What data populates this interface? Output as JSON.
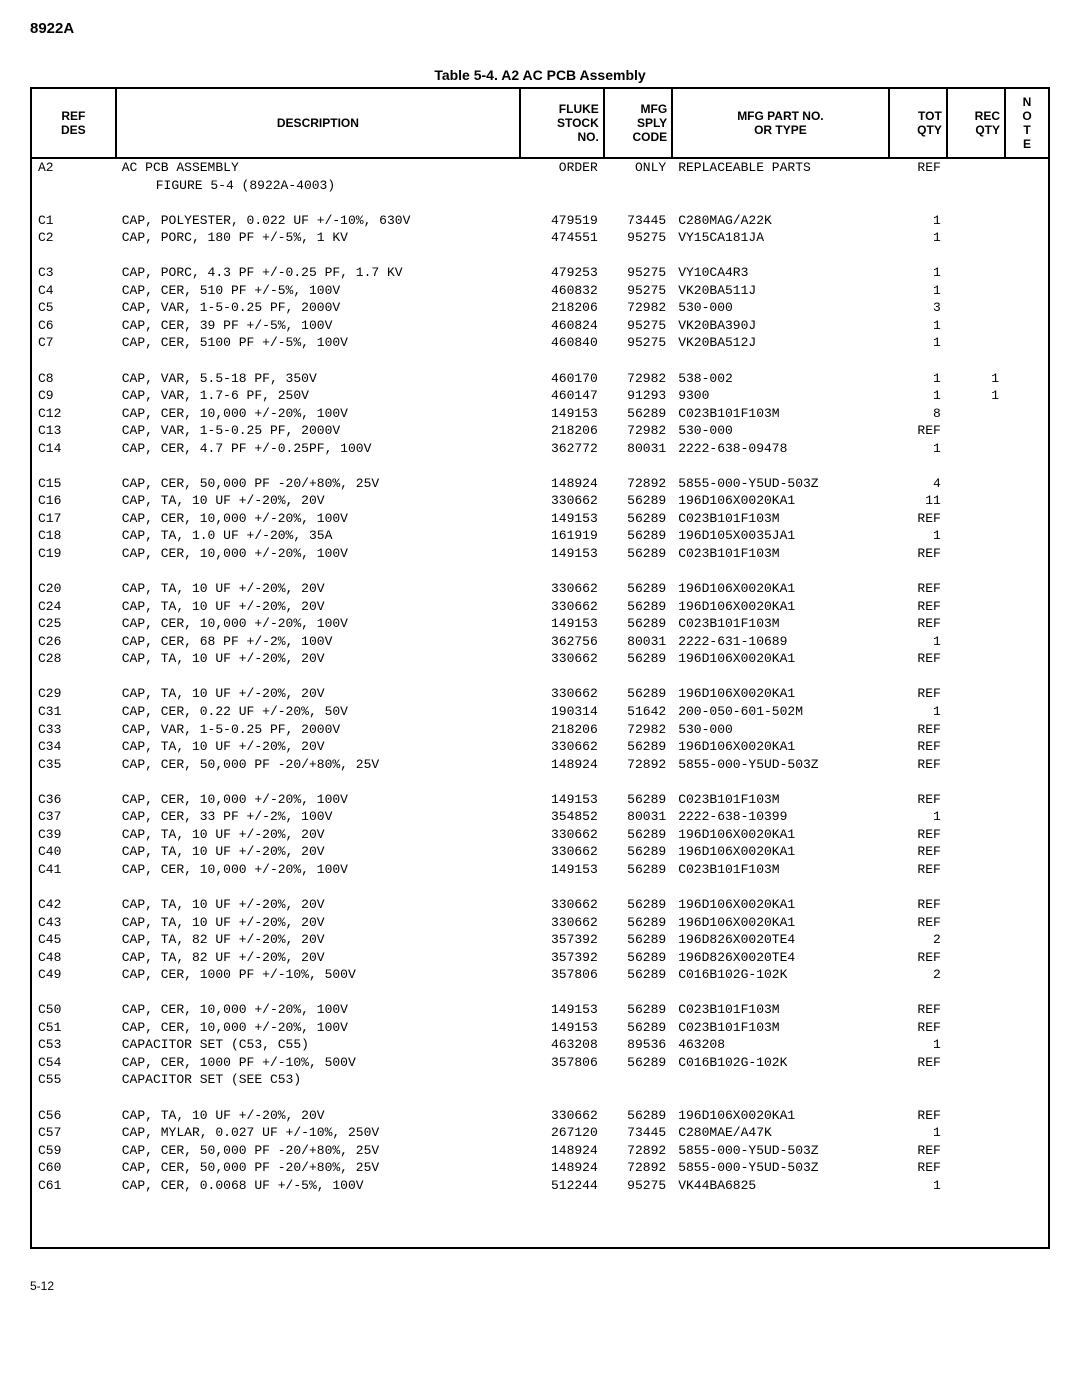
{
  "model": "8922A",
  "tableTitle": "Table 5-4. A2 AC PCB Assembly",
  "pageNo": "5-12",
  "headers": {
    "ref": "REF\nDES",
    "desc": "DESCRIPTION",
    "fluke": "FLUKE\nSTOCK\nNO.",
    "mfg": "MFG\nSPLY\nCODE",
    "part": "MFG PART NO.\nOR TYPE",
    "tot": "TOT\nQTY",
    "rec": "REC\nQTY",
    "note": "N\nO\nT\nE"
  },
  "groups": [
    [
      {
        "ref": "A2",
        "desc": "AC PCB ASSEMBLY",
        "fluke": "ORDER",
        "mfg": "ONLY",
        "part": "REPLACEABLE PARTS",
        "tot": "REF",
        "rec": "",
        "note": ""
      },
      {
        "ref": "",
        "desc": "  FIGURE 5-4 (8922A-4003)",
        "fluke": "",
        "mfg": "",
        "part": "",
        "tot": "",
        "rec": "",
        "note": "",
        "indent": true
      }
    ],
    [
      {
        "ref": "C1",
        "desc": "CAP, POLYESTER, 0.022 UF +/-10%, 630V",
        "fluke": "479519",
        "mfg": "73445",
        "part": "C280MAG/A22K",
        "tot": "1",
        "rec": "",
        "note": ""
      },
      {
        "ref": "C2",
        "desc": "CAP, PORC, 180 PF +/-5%, 1 KV",
        "fluke": "474551",
        "mfg": "95275",
        "part": "VY15CA181JA",
        "tot": "1",
        "rec": "",
        "note": ""
      }
    ],
    [
      {
        "ref": "C3",
        "desc": "CAP, PORC, 4.3 PF +/-0.25 PF, 1.7 KV",
        "fluke": "479253",
        "mfg": "95275",
        "part": "VY10CA4R3",
        "tot": "1",
        "rec": "",
        "note": ""
      },
      {
        "ref": "C4",
        "desc": "CAP, CER, 510 PF +/-5%, 100V",
        "fluke": "460832",
        "mfg": "95275",
        "part": "VK20BA511J",
        "tot": "1",
        "rec": "",
        "note": ""
      },
      {
        "ref": "C5",
        "desc": "CAP, VAR, 1-5-0.25 PF, 2000V",
        "fluke": "218206",
        "mfg": "72982",
        "part": "530-000",
        "tot": "3",
        "rec": "",
        "note": ""
      },
      {
        "ref": "C6",
        "desc": "CAP, CER, 39 PF +/-5%, 100V",
        "fluke": "460824",
        "mfg": "95275",
        "part": "VK20BA390J",
        "tot": "1",
        "rec": "",
        "note": ""
      },
      {
        "ref": "C7",
        "desc": "CAP, CER, 5100 PF +/-5%, 100V",
        "fluke": "460840",
        "mfg": "95275",
        "part": "VK20BA512J",
        "tot": "1",
        "rec": "",
        "note": ""
      }
    ],
    [
      {
        "ref": "C8",
        "desc": "CAP, VAR, 5.5-18 PF, 350V",
        "fluke": "460170",
        "mfg": "72982",
        "part": "538-002",
        "tot": "1",
        "rec": "1",
        "note": ""
      },
      {
        "ref": "C9",
        "desc": "CAP, VAR, 1.7-6 PF, 250V",
        "fluke": "460147",
        "mfg": "91293",
        "part": "9300",
        "tot": "1",
        "rec": "1",
        "note": ""
      },
      {
        "ref": "C12",
        "desc": "CAP, CER, 10,000 +/-20%, 100V",
        "fluke": "149153",
        "mfg": "56289",
        "part": "C023B101F103M",
        "tot": "8",
        "rec": "",
        "note": ""
      },
      {
        "ref": "C13",
        "desc": "CAP, VAR, 1-5-0.25 PF, 2000V",
        "fluke": "218206",
        "mfg": "72982",
        "part": "530-000",
        "tot": "REF",
        "rec": "",
        "note": ""
      },
      {
        "ref": "C14",
        "desc": "CAP, CER, 4.7 PF +/-0.25PF, 100V",
        "fluke": "362772",
        "mfg": "80031",
        "part": "2222-638-09478",
        "tot": "1",
        "rec": "",
        "note": ""
      }
    ],
    [
      {
        "ref": "C15",
        "desc": "CAP, CER, 50,000 PF -20/+80%, 25V",
        "fluke": "148924",
        "mfg": "72892",
        "part": "5855-000-Y5UD-503Z",
        "tot": "4",
        "rec": "",
        "note": ""
      },
      {
        "ref": "C16",
        "desc": "CAP, TA, 10 UF +/-20%, 20V",
        "fluke": "330662",
        "mfg": "56289",
        "part": "196D106X0020KA1",
        "tot": "11",
        "rec": "",
        "note": ""
      },
      {
        "ref": "C17",
        "desc": "CAP, CER, 10,000 +/-20%, 100V",
        "fluke": "149153",
        "mfg": "56289",
        "part": "C023B101F103M",
        "tot": "REF",
        "rec": "",
        "note": ""
      },
      {
        "ref": "C18",
        "desc": "CAP, TA, 1.0 UF +/-20%, 35A",
        "fluke": "161919",
        "mfg": "56289",
        "part": "196D105X0035JA1",
        "tot": "1",
        "rec": "",
        "note": ""
      },
      {
        "ref": "C19",
        "desc": "CAP, CER, 10,000 +/-20%, 100V",
        "fluke": "149153",
        "mfg": "56289",
        "part": "C023B101F103M",
        "tot": "REF",
        "rec": "",
        "note": ""
      }
    ],
    [
      {
        "ref": "C20",
        "desc": "CAP, TA, 10 UF +/-20%, 20V",
        "fluke": "330662",
        "mfg": "56289",
        "part": "196D106X0020KA1",
        "tot": "REF",
        "rec": "",
        "note": ""
      },
      {
        "ref": "C24",
        "desc": "CAP, TA, 10 UF +/-20%, 20V",
        "fluke": "330662",
        "mfg": "56289",
        "part": "196D106X0020KA1",
        "tot": "REF",
        "rec": "",
        "note": ""
      },
      {
        "ref": "C25",
        "desc": "CAP, CER, 10,000 +/-20%, 100V",
        "fluke": "149153",
        "mfg": "56289",
        "part": "C023B101F103M",
        "tot": "REF",
        "rec": "",
        "note": ""
      },
      {
        "ref": "C26",
        "desc": "CAP, CER, 68 PF +/-2%, 100V",
        "fluke": "362756",
        "mfg": "80031",
        "part": "2222-631-10689",
        "tot": "1",
        "rec": "",
        "note": ""
      },
      {
        "ref": "C28",
        "desc": "CAP, TA, 10 UF +/-20%, 20V",
        "fluke": "330662",
        "mfg": "56289",
        "part": "196D106X0020KA1",
        "tot": "REF",
        "rec": "",
        "note": ""
      }
    ],
    [
      {
        "ref": "C29",
        "desc": "CAP, TA, 10 UF +/-20%, 20V",
        "fluke": "330662",
        "mfg": "56289",
        "part": "196D106X0020KA1",
        "tot": "REF",
        "rec": "",
        "note": ""
      },
      {
        "ref": "C31",
        "desc": "CAP, CER, 0.22 UF +/-20%, 50V",
        "fluke": "190314",
        "mfg": "51642",
        "part": "200-050-601-502M",
        "tot": "1",
        "rec": "",
        "note": ""
      },
      {
        "ref": "C33",
        "desc": "CAP, VAR, 1-5-0.25 PF, 2000V",
        "fluke": "218206",
        "mfg": "72982",
        "part": "530-000",
        "tot": "REF",
        "rec": "",
        "note": ""
      },
      {
        "ref": "C34",
        "desc": "CAP, TA, 10 UF +/-20%, 20V",
        "fluke": "330662",
        "mfg": "56289",
        "part": "196D106X0020KA1",
        "tot": "REF",
        "rec": "",
        "note": ""
      },
      {
        "ref": "C35",
        "desc": "CAP, CER, 50,000 PF -20/+80%, 25V",
        "fluke": "148924",
        "mfg": "72892",
        "part": "5855-000-Y5UD-503Z",
        "tot": "REF",
        "rec": "",
        "note": ""
      }
    ],
    [
      {
        "ref": "C36",
        "desc": "CAP, CER, 10,000 +/-20%, 100V",
        "fluke": "149153",
        "mfg": "56289",
        "part": "C023B101F103M",
        "tot": "REF",
        "rec": "",
        "note": ""
      },
      {
        "ref": "C37",
        "desc": "CAP, CER, 33 PF +/-2%, 100V",
        "fluke": "354852",
        "mfg": "80031",
        "part": "2222-638-10399",
        "tot": "1",
        "rec": "",
        "note": ""
      },
      {
        "ref": "C39",
        "desc": "CAP, TA, 10 UF +/-20%, 20V",
        "fluke": "330662",
        "mfg": "56289",
        "part": "196D106X0020KA1",
        "tot": "REF",
        "rec": "",
        "note": ""
      },
      {
        "ref": "C40",
        "desc": "CAP, TA, 10 UF +/-20%, 20V",
        "fluke": "330662",
        "mfg": "56289",
        "part": "196D106X0020KA1",
        "tot": "REF",
        "rec": "",
        "note": ""
      },
      {
        "ref": "C41",
        "desc": "CAP, CER, 10,000 +/-20%, 100V",
        "fluke": "149153",
        "mfg": "56289",
        "part": "C023B101F103M",
        "tot": "REF",
        "rec": "",
        "note": ""
      }
    ],
    [
      {
        "ref": "C42",
        "desc": "CAP, TA, 10 UF +/-20%, 20V",
        "fluke": "330662",
        "mfg": "56289",
        "part": "196D106X0020KA1",
        "tot": "REF",
        "rec": "",
        "note": ""
      },
      {
        "ref": "C43",
        "desc": "CAP, TA, 10 UF +/-20%, 20V",
        "fluke": "330662",
        "mfg": "56289",
        "part": "196D106X0020KA1",
        "tot": "REF",
        "rec": "",
        "note": ""
      },
      {
        "ref": "C45",
        "desc": "CAP, TA, 82 UF +/-20%, 20V",
        "fluke": "357392",
        "mfg": "56289",
        "part": "196D826X0020TE4",
        "tot": "2",
        "rec": "",
        "note": ""
      },
      {
        "ref": "C48",
        "desc": "CAP, TA, 82 UF +/-20%, 20V",
        "fluke": "357392",
        "mfg": "56289",
        "part": "196D826X0020TE4",
        "tot": "REF",
        "rec": "",
        "note": ""
      },
      {
        "ref": "C49",
        "desc": "CAP, CER, 1000 PF +/-10%, 500V",
        "fluke": "357806",
        "mfg": "56289",
        "part": "C016B102G-102K",
        "tot": "2",
        "rec": "",
        "note": ""
      }
    ],
    [
      {
        "ref": "C50",
        "desc": "CAP, CER, 10,000 +/-20%, 100V",
        "fluke": "149153",
        "mfg": "56289",
        "part": "C023B101F103M",
        "tot": "REF",
        "rec": "",
        "note": ""
      },
      {
        "ref": "C51",
        "desc": "CAP, CER, 10,000 +/-20%, 100V",
        "fluke": "149153",
        "mfg": "56289",
        "part": "C023B101F103M",
        "tot": "REF",
        "rec": "",
        "note": ""
      },
      {
        "ref": "C53",
        "desc": "CAPACITOR SET (C53, C55)",
        "fluke": "463208",
        "mfg": "89536",
        "part": "463208",
        "tot": "1",
        "rec": "",
        "note": ""
      },
      {
        "ref": "C54",
        "desc": "CAP, CER, 1000 PF +/-10%, 500V",
        "fluke": "357806",
        "mfg": "56289",
        "part": "C016B102G-102K",
        "tot": "REF",
        "rec": "",
        "note": ""
      },
      {
        "ref": "C55",
        "desc": "CAPACITOR SET (SEE C53)",
        "fluke": "",
        "mfg": "",
        "part": "",
        "tot": "",
        "rec": "",
        "note": ""
      }
    ],
    [
      {
        "ref": "C56",
        "desc": "CAP, TA, 10 UF +/-20%, 20V",
        "fluke": "330662",
        "mfg": "56289",
        "part": "196D106X0020KA1",
        "tot": "REF",
        "rec": "",
        "note": ""
      },
      {
        "ref": "C57",
        "desc": "CAP, MYLAR, 0.027 UF +/-10%, 250V",
        "fluke": "267120",
        "mfg": "73445",
        "part": "C280MAE/A47K",
        "tot": "1",
        "rec": "",
        "note": ""
      },
      {
        "ref": "C59",
        "desc": "CAP, CER, 50,000 PF -20/+80%, 25V",
        "fluke": "148924",
        "mfg": "72892",
        "part": "5855-000-Y5UD-503Z",
        "tot": "REF",
        "rec": "",
        "note": ""
      },
      {
        "ref": "C60",
        "desc": "CAP, CER, 50,000 PF -20/+80%, 25V",
        "fluke": "148924",
        "mfg": "72892",
        "part": "5855-000-Y5UD-503Z",
        "tot": "REF",
        "rec": "",
        "note": ""
      },
      {
        "ref": "C61",
        "desc": "CAP, CER, 0.0068 UF +/-5%, 100V",
        "fluke": "512244",
        "mfg": "95275",
        "part": "VK44BA6825",
        "tot": "1",
        "rec": "",
        "note": ""
      }
    ]
  ]
}
